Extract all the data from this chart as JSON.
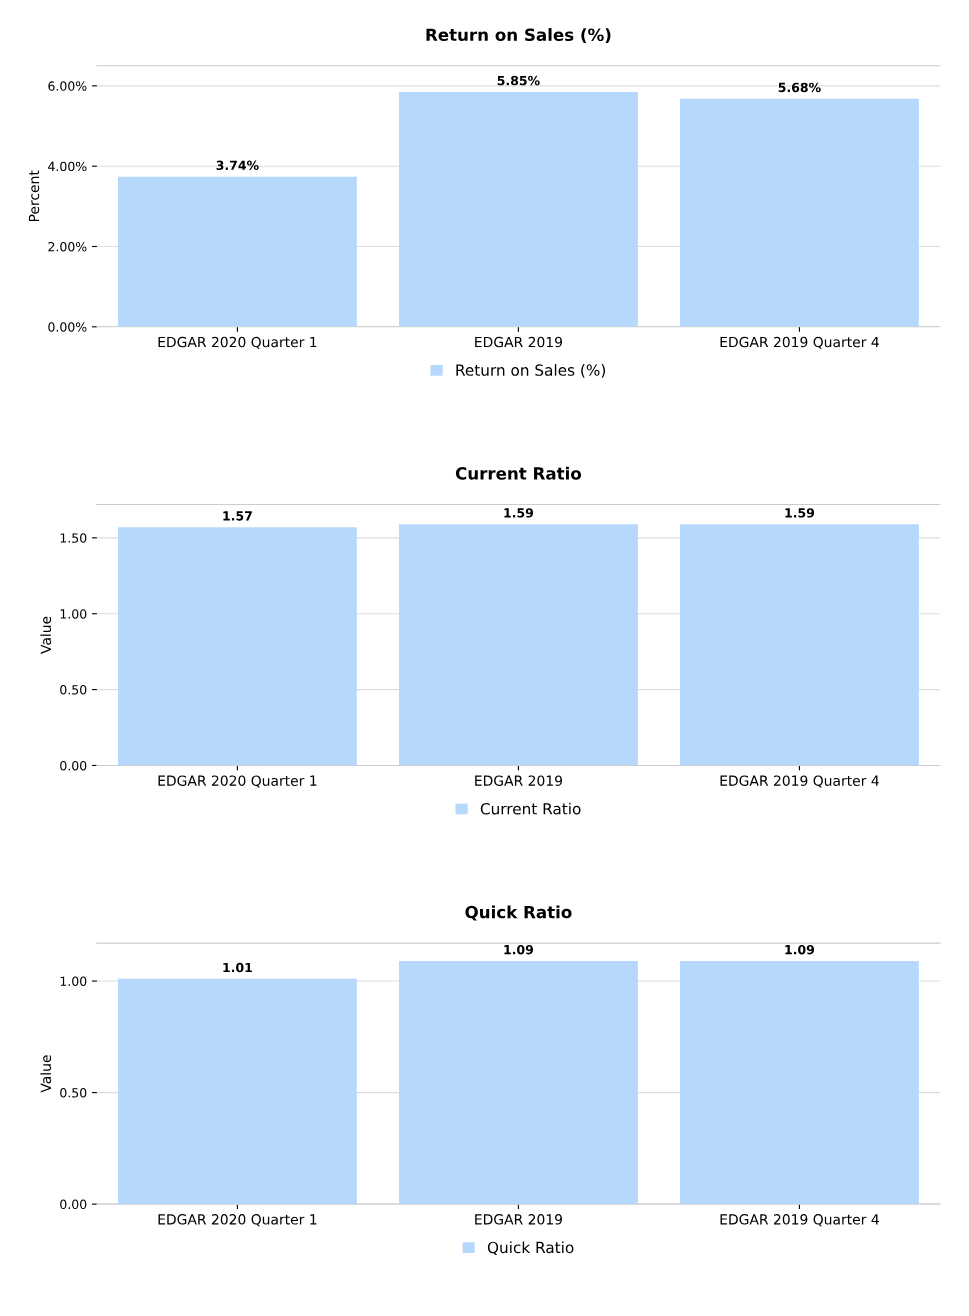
{
  "chart_data": [
    {
      "type": "bar",
      "title": "Return on Sales (%)",
      "ylabel": "Percent",
      "categories": [
        "EDGAR 2020 Quarter 1",
        "EDGAR 2019",
        "EDGAR 2019 Quarter 4"
      ],
      "series": [
        {
          "name": "Return on Sales (%)",
          "color": "#b5d8fc",
          "values": [
            3.74,
            5.85,
            5.68
          ]
        }
      ],
      "value_labels": [
        "3.74%",
        "5.85%",
        "5.68%"
      ],
      "ylim": [
        0,
        6.5
      ],
      "yticks": [
        {
          "value": 0,
          "label": "0.00%"
        },
        {
          "value": 2,
          "label": "2.00%"
        },
        {
          "value": 4,
          "label": "4.00%"
        },
        {
          "value": 6,
          "label": "6.00%"
        }
      ],
      "grid": "y",
      "legend": "bottom"
    },
    {
      "type": "bar",
      "title": "Current Ratio",
      "ylabel": "Value",
      "categories": [
        "EDGAR 2020 Quarter 1",
        "EDGAR 2019",
        "EDGAR 2019 Quarter 4"
      ],
      "series": [
        {
          "name": "Current Ratio",
          "color": "#b5d8fc",
          "values": [
            1.57,
            1.59,
            1.59
          ]
        }
      ],
      "data_labels": true,
      "ylim": [
        0,
        1.72
      ],
      "yticks": [
        {
          "value": 0,
          "label": "0.00"
        },
        {
          "value": 0.5,
          "label": "0.50"
        },
        {
          "value": 1,
          "label": "1.00"
        },
        {
          "value": 1.5,
          "label": "1.50"
        }
      ],
      "grid": "y",
      "legend": "bottom"
    },
    {
      "type": "bar",
      "title": "Quick Ratio",
      "ylabel": "Value",
      "categories": [
        "EDGAR 2020 Quarter 1",
        "EDGAR 2019",
        "EDGAR 2019 Quarter 4"
      ],
      "series": [
        {
          "name": "Quick Ratio",
          "color": "#b5d8fc",
          "values": [
            1.01,
            1.09,
            1.09
          ]
        }
      ],
      "data_labels": true,
      "ylim": [
        0,
        1.17
      ],
      "yticks": [
        {
          "value": 0,
          "label": "0.00"
        },
        {
          "value": 0.5,
          "label": "0.50"
        },
        {
          "value": 1,
          "label": "1.00"
        }
      ],
      "grid": "y",
      "legend": "bottom"
    }
  ]
}
